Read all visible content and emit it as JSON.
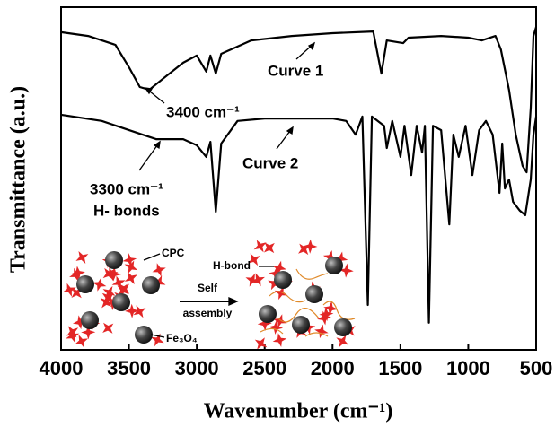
{
  "chart_data": {
    "type": "line",
    "x_label": "Wavenumber (cm⁻¹)",
    "y_label": "Transmittance (a.u.)",
    "xlim": [
      4000,
      500
    ],
    "xticks": [
      4000,
      3500,
      3000,
      2500,
      2000,
      1500,
      1000,
      500
    ],
    "ylim": [
      0,
      100
    ],
    "annotations": [
      "3400 cm⁻¹",
      "Curve 1",
      "Curve 2",
      "3300 cm⁻¹",
      "H- bonds",
      "CPC",
      "H-bond",
      "Self",
      "assembly",
      "Fe₃O₄"
    ],
    "series": [
      {
        "color": "#000000",
        "x": [
          4000,
          3800,
          3600,
          3500,
          3420,
          3350,
          3250,
          3100,
          3000,
          2930,
          2900,
          2860,
          2820,
          2600,
          2300,
          2000,
          1700,
          1640,
          1600,
          1480,
          1440,
          1200,
          1000,
          900,
          800,
          760,
          700,
          650,
          600,
          570,
          540,
          520,
          500
        ],
        "values": [
          92.7,
          91.6,
          89.0,
          82.5,
          76.7,
          75.9,
          79.1,
          83.8,
          85.9,
          81.2,
          85.9,
          80.6,
          86.4,
          90.3,
          91.6,
          92.4,
          92.9,
          80.6,
          90.3,
          89.5,
          91.1,
          91.6,
          91.1,
          90.3,
          91.6,
          87.7,
          75.9,
          62.8,
          53.7,
          51.8,
          70.7,
          91.6,
          94.2
        ]
      },
      {
        "color": "#000000",
        "x": [
          4000,
          3700,
          3400,
          3300,
          3100,
          3000,
          2930,
          2900,
          2860,
          2820,
          2700,
          2500,
          2000,
          1900,
          1830,
          1780,
          1740,
          1710,
          1620,
          1600,
          1560,
          1500,
          1470,
          1420,
          1380,
          1340,
          1320,
          1290,
          1260,
          1200,
          1140,
          1110,
          1070,
          1020,
          970,
          920,
          870,
          820,
          770,
          750,
          730,
          700,
          670,
          620,
          580,
          540,
          520,
          500
        ],
        "values": [
          68.6,
          66.8,
          62.8,
          61.5,
          61.5,
          59.7,
          56.3,
          60.7,
          40.3,
          60.2,
          66.8,
          67.5,
          67.5,
          66.8,
          62.8,
          68.1,
          13.1,
          68.1,
          65.4,
          58.9,
          66.8,
          56.3,
          65.4,
          51.0,
          65.4,
          57.6,
          65.4,
          7.9,
          65.4,
          64.1,
          36.6,
          62.8,
          56.3,
          65.4,
          51.0,
          64.1,
          66.8,
          62.8,
          45.8,
          60.2,
          47.1,
          49.7,
          43.2,
          40.6,
          39.3,
          49.7,
          62.8,
          68.1
        ]
      }
    ]
  }
}
